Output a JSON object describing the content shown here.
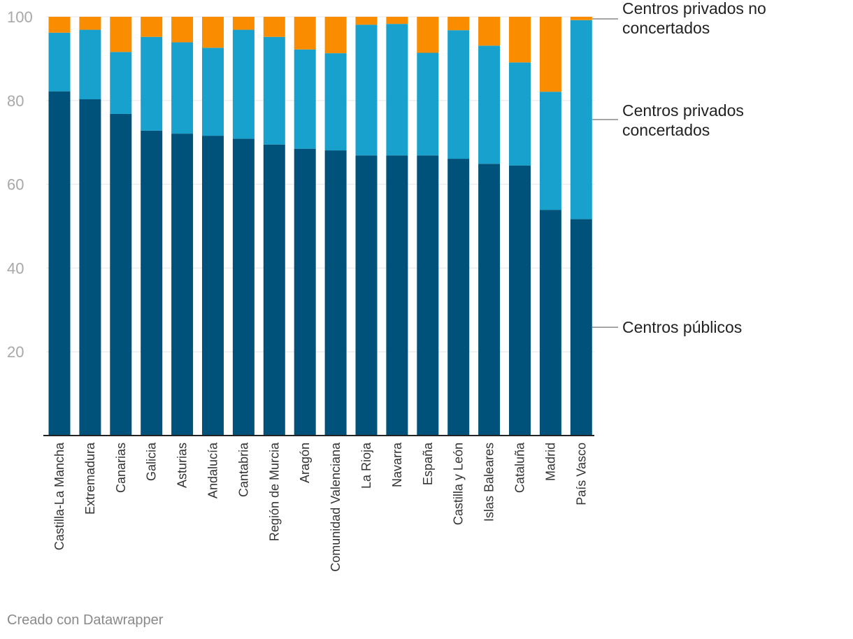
{
  "chart_data": {
    "type": "bar",
    "stacked": true,
    "title": "",
    "xlabel": "",
    "ylabel": "",
    "ylim": [
      0,
      100
    ],
    "yticks": [
      20,
      40,
      60,
      80,
      100
    ],
    "categories": [
      "Castilla-La Mancha",
      "Extremadura",
      "Canarias",
      "Galicia",
      "Asturias",
      "Andalucía",
      "Cantabria",
      "Región de Murcia",
      "Aragón",
      "Comunidad Valenciana",
      "La Rioja",
      "Navarra",
      "España",
      "Castilla y León",
      "Islas Baleares",
      "Cataluña",
      "Madrid",
      "País Vasco"
    ],
    "series": [
      {
        "name": "Centros públicos",
        "color": "#00527a",
        "values": [
          82.2,
          80.3,
          76.8,
          72.8,
          72.1,
          71.6,
          70.9,
          69.5,
          68.5,
          68.1,
          66.9,
          66.9,
          66.9,
          66.1,
          64.9,
          64.5,
          53.9,
          51.7
        ]
      },
      {
        "name": "Centros privados concertados",
        "color": "#18a1cd",
        "values": [
          14.0,
          16.6,
          14.8,
          22.4,
          21.8,
          21.0,
          26.0,
          25.7,
          23.7,
          23.2,
          31.2,
          31.4,
          24.5,
          30.7,
          28.2,
          24.6,
          28.2,
          47.5
        ]
      },
      {
        "name": "Centros privados no concertados",
        "color": "#fa8c00",
        "values": [
          3.8,
          3.1,
          8.4,
          4.8,
          6.1,
          7.4,
          3.1,
          4.8,
          7.8,
          8.7,
          1.9,
          1.7,
          8.6,
          3.2,
          6.9,
          10.9,
          17.9,
          0.8
        ]
      }
    ],
    "legend_position": "right, labels beside last bar"
  },
  "legend": {
    "no_concertados": [
      "Centros privados no",
      "concertados"
    ],
    "concertados": [
      "Centros privados",
      "concertados"
    ],
    "publicos": [
      "Centros públicos"
    ]
  },
  "footer": {
    "credit": "Creado con Datawrapper"
  }
}
